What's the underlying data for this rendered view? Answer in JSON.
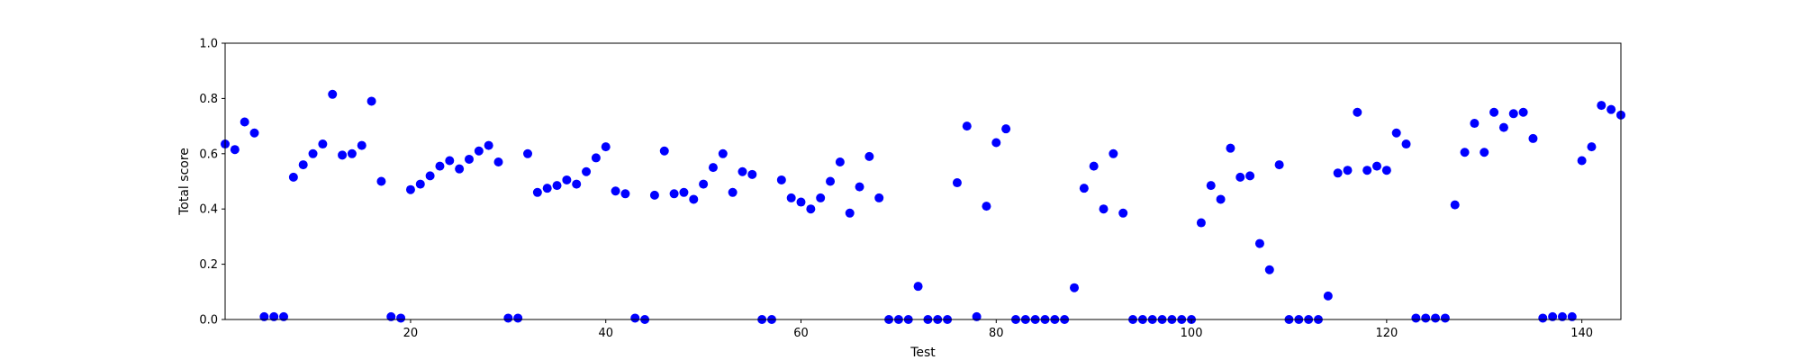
{
  "chart_data": {
    "type": "scatter",
    "title": "",
    "xlabel": "Test",
    "ylabel": "Total score",
    "xlim": [
      1,
      144
    ],
    "ylim": [
      0.0,
      1.0
    ],
    "xticks": [
      20,
      40,
      60,
      80,
      100,
      120,
      140
    ],
    "yticks": [
      0.0,
      0.2,
      0.4,
      0.6,
      0.8,
      1.0
    ],
    "ytick_labels": [
      "0.0",
      "0.2",
      "0.4",
      "0.6",
      "0.8",
      "1.0"
    ],
    "grid": false,
    "marker_color": "#0000ff",
    "series": [
      {
        "x": [
          1,
          2,
          3,
          4,
          5,
          6,
          7,
          8,
          9,
          10,
          11,
          12,
          13,
          14,
          15,
          16,
          17,
          18,
          19,
          20,
          21,
          22,
          23,
          24,
          25,
          26,
          27,
          28,
          29,
          30,
          31,
          32,
          33,
          34,
          35,
          36,
          37,
          38,
          39,
          40,
          41,
          42,
          43,
          44,
          45,
          46,
          47,
          48,
          49,
          50,
          51,
          52,
          53,
          54,
          55,
          56,
          57,
          58,
          59,
          60,
          61,
          62,
          63,
          64,
          65,
          66,
          67,
          68,
          69,
          70,
          71,
          72,
          73,
          74,
          75,
          76,
          77,
          78,
          79,
          80,
          81,
          82,
          83,
          84,
          85,
          86,
          87,
          88,
          89,
          90,
          91,
          92,
          93,
          94,
          95,
          96,
          97,
          98,
          99,
          100,
          101,
          102,
          103,
          104,
          105,
          106,
          107,
          108,
          109,
          110,
          111,
          112,
          113,
          114,
          115,
          116,
          117,
          118,
          119,
          120,
          121,
          122,
          123,
          124,
          125,
          126,
          127,
          128,
          129,
          130,
          131,
          132,
          133,
          134,
          135,
          136,
          137,
          138,
          139,
          140,
          141,
          142,
          143,
          144
        ],
        "y": [
          0.635,
          0.615,
          0.715,
          0.675,
          0.01,
          0.01,
          0.01,
          0.515,
          0.56,
          0.6,
          0.635,
          0.815,
          0.595,
          0.6,
          0.63,
          0.79,
          0.5,
          0.01,
          0.005,
          0.47,
          0.49,
          0.52,
          0.555,
          0.575,
          0.545,
          0.58,
          0.61,
          0.63,
          0.57,
          0.005,
          0.005,
          0.6,
          0.46,
          0.475,
          0.485,
          0.505,
          0.49,
          0.535,
          0.585,
          0.625,
          0.465,
          0.455,
          0.005,
          0.0,
          0.45,
          0.61,
          0.455,
          0.46,
          0.435,
          0.49,
          0.55,
          0.6,
          0.46,
          0.535,
          0.525,
          0.0,
          0.0,
          0.505,
          0.44,
          0.425,
          0.4,
          0.44,
          0.5,
          0.57,
          0.385,
          0.48,
          0.59,
          0.44,
          0.0,
          0.0,
          0.0,
          0.12,
          0.0,
          0.0,
          0.0,
          0.495,
          0.7,
          0.01,
          0.41,
          0.64,
          0.69,
          0.0,
          0.0,
          0.0,
          0.0,
          0.0,
          0.0,
          0.115,
          0.475,
          0.555,
          0.4,
          0.6,
          0.385,
          0.0,
          0.0,
          0.0,
          0.0,
          0.0,
          0.0,
          0.0,
          0.35,
          0.485,
          0.435,
          0.62,
          0.515,
          0.52,
          0.275,
          0.18,
          0.56,
          0.0,
          0.0,
          0.0,
          0.0,
          0.085,
          0.53,
          0.54,
          0.75,
          0.54,
          0.555,
          0.54,
          0.675,
          0.635,
          0.005,
          0.005,
          0.005,
          0.005,
          0.415,
          0.605,
          0.71,
          0.605,
          0.75,
          0.695,
          0.745,
          0.75,
          0.655,
          0.005,
          0.01,
          0.01,
          0.01,
          0.575,
          0.625,
          0.775,
          0.76,
          0.74
        ]
      }
    ]
  }
}
